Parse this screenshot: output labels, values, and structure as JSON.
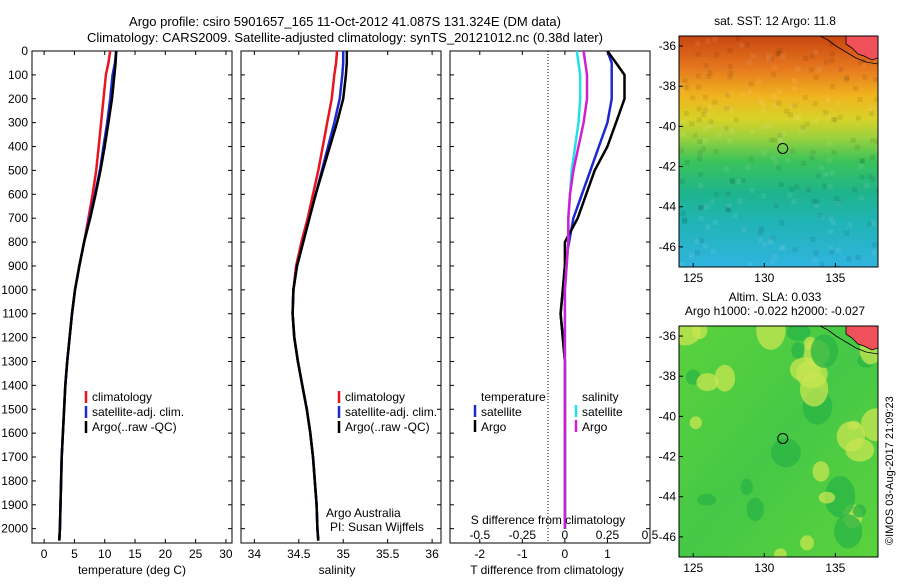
{
  "figure": {
    "title_line1": "Argo profile: csiro 5901657_165 11-Oct-2012 41.087S 131.324E (DM data)",
    "title_line2": "Climatology: CARS2009. Satellite-adjusted climatology: synTS_20121012.nc (0.38d later)",
    "credit": "Argo Australia",
    "pi": "PI: Susan Wijffels",
    "side_stamp": "©IMOS 03-Aug-2017 21:09:23"
  },
  "colors": {
    "climatology": "#e8141e",
    "satellite": "#1e28d2",
    "argo": "#000000",
    "salinity_satellite": "#21e1e6",
    "salinity_argo": "#d21ed2"
  },
  "chart_data": [
    {
      "type": "line",
      "name": "temperature_profile",
      "xlabel": "temperature (deg C)",
      "ylabel": "",
      "xlim": [
        -2,
        31
      ],
      "ylim": [
        2060,
        0
      ],
      "xticks": [
        0,
        5,
        10,
        15,
        20,
        25,
        30
      ],
      "yticks": [
        0,
        100,
        200,
        300,
        400,
        500,
        600,
        700,
        800,
        900,
        1000,
        1100,
        1200,
        1300,
        1400,
        1500,
        1600,
        1700,
        1800,
        1900,
        2000
      ],
      "legend": [
        "climatology",
        "satellite-adj. clim.",
        "Argo(..raw -QC)"
      ],
      "legend_position": "lower-center",
      "series": [
        {
          "name": "climatology",
          "color": "climatology",
          "x": [
            10.9,
            10.6,
            10.2,
            9.8,
            9.4,
            9.0,
            8.6,
            8.0,
            7.3,
            6.6,
            5.8,
            5.1,
            4.6,
            4.2,
            3.8,
            3.5,
            3.3,
            3.1,
            2.9,
            2.8,
            2.7,
            2.6,
            2.5
          ],
          "y": [
            0,
            50,
            100,
            200,
            300,
            400,
            500,
            600,
            700,
            800,
            900,
            1000,
            1100,
            1200,
            1300,
            1400,
            1500,
            1600,
            1700,
            1800,
            1900,
            2000,
            2050
          ]
        },
        {
          "name": "satellite-adj. clim.",
          "color": "satellite",
          "x": [
            11.9,
            11.7,
            11.3,
            10.9,
            10.4,
            9.8,
            9.2,
            8.4,
            7.5,
            6.6,
            5.8,
            5.1,
            4.6,
            4.2,
            3.8,
            3.5,
            3.3,
            3.1,
            2.9,
            2.8,
            2.7,
            2.6,
            2.5
          ],
          "y": [
            0,
            50,
            100,
            200,
            300,
            400,
            500,
            600,
            700,
            800,
            900,
            1000,
            1100,
            1200,
            1300,
            1400,
            1500,
            1600,
            1700,
            1800,
            1900,
            2000,
            2050
          ]
        },
        {
          "name": "Argo(..raw -QC)",
          "color": "argo",
          "x": [
            11.9,
            11.8,
            11.6,
            11.2,
            10.6,
            10.0,
            9.3,
            8.5,
            7.6,
            6.6,
            5.8,
            5.1,
            4.6,
            4.2,
            3.8,
            3.5,
            3.3,
            3.1,
            2.9,
            2.8,
            2.7,
            2.6,
            2.5
          ],
          "y": [
            0,
            50,
            100,
            200,
            300,
            400,
            500,
            600,
            700,
            800,
            900,
            1000,
            1100,
            1200,
            1300,
            1400,
            1500,
            1600,
            1700,
            1800,
            1900,
            2000,
            2050
          ]
        }
      ]
    },
    {
      "type": "line",
      "name": "salinity_profile",
      "xlabel": "salinity",
      "xlim": [
        33.85,
        36.1
      ],
      "ylim": [
        2060,
        0
      ],
      "xticks": [
        34,
        34.5,
        35,
        35.5,
        36
      ],
      "legend": [
        "climatology",
        "satellite-adj. clim.",
        "Argo(..raw -QC)"
      ],
      "legend_position": "lower-center",
      "series": [
        {
          "name": "climatology",
          "color": "climatology",
          "x": [
            34.93,
            34.92,
            34.9,
            34.87,
            34.82,
            34.77,
            34.72,
            34.66,
            34.6,
            34.53,
            34.47,
            34.44,
            34.43,
            34.45,
            34.49,
            34.54,
            34.59,
            34.63,
            34.66,
            34.68,
            34.7,
            34.71,
            34.72
          ],
          "y": [
            0,
            50,
            100,
            200,
            300,
            400,
            500,
            600,
            700,
            800,
            900,
            1000,
            1100,
            1200,
            1300,
            1400,
            1500,
            1600,
            1700,
            1800,
            1900,
            2000,
            2050
          ]
        },
        {
          "name": "satellite-adj. clim.",
          "color": "satellite",
          "x": [
            35.0,
            35.0,
            34.99,
            34.96,
            34.9,
            34.83,
            34.76,
            34.69,
            34.62,
            34.55,
            34.48,
            34.44,
            34.43,
            34.45,
            34.49,
            34.54,
            34.59,
            34.63,
            34.66,
            34.68,
            34.7,
            34.71,
            34.72
          ],
          "y": [
            0,
            50,
            100,
            200,
            300,
            400,
            500,
            600,
            700,
            800,
            900,
            1000,
            1100,
            1200,
            1300,
            1400,
            1500,
            1600,
            1700,
            1800,
            1900,
            2000,
            2050
          ]
        },
        {
          "name": "Argo(..raw -QC)",
          "color": "argo",
          "x": [
            35.04,
            35.04,
            35.03,
            35.0,
            34.93,
            34.85,
            34.77,
            34.69,
            34.62,
            34.55,
            34.48,
            34.44,
            34.43,
            34.45,
            34.49,
            34.54,
            34.59,
            34.63,
            34.66,
            34.68,
            34.7,
            34.71,
            34.72
          ],
          "y": [
            0,
            50,
            100,
            200,
            300,
            400,
            500,
            600,
            700,
            800,
            900,
            1000,
            1100,
            1200,
            1300,
            1400,
            1500,
            1600,
            1700,
            1800,
            1900,
            2000,
            2050
          ]
        }
      ]
    },
    {
      "type": "line",
      "name": "difference_profile",
      "xlabel": "T difference from climatology",
      "x2label": "S difference from climatology",
      "xlim": [
        -2.7,
        2.0
      ],
      "ylim": [
        2060,
        0
      ],
      "xticks": [
        -2,
        -1,
        0,
        1
      ],
      "x2lim": [
        -0.675,
        0.5
      ],
      "x2ticks": [
        -0.5,
        -0.25,
        0,
        0.25,
        0.5
      ],
      "x2ticklabels": [
        "-0.5",
        "-0.25",
        "0",
        "0.25",
        "0.5"
      ],
      "legend_temperature": {
        "title": "temperature",
        "items": [
          "satellite",
          "Argo"
        ]
      },
      "legend_salinity": {
        "title": "salinity",
        "items": [
          "satellite",
          "Argo"
        ]
      },
      "legend_position": "lower-center",
      "series": [
        {
          "name": "satellite",
          "group": "temperature",
          "color": "satellite",
          "x": [
            1.0,
            1.1,
            1.1,
            1.1,
            1.0,
            0.8,
            0.6,
            0.4,
            0.2,
            0.1,
            0.0,
            -0.05,
            -0.1,
            -0.05,
            0.0,
            0.0,
            0.0,
            0.0,
            0.0,
            0.0,
            0.0
          ],
          "y": [
            0,
            50,
            100,
            200,
            300,
            400,
            500,
            600,
            700,
            800,
            900,
            1000,
            1100,
            1200,
            1300,
            1400,
            1500,
            1600,
            1700,
            1800,
            2000
          ]
        },
        {
          "name": "Argo",
          "group": "temperature",
          "color": "argo",
          "x": [
            1.0,
            1.2,
            1.4,
            1.4,
            1.2,
            1.0,
            0.7,
            0.5,
            0.3,
            0.0,
            0.0,
            -0.05,
            -0.1,
            -0.05,
            0.0,
            0.0,
            0.0,
            0.0,
            0.0,
            0.0,
            0.0
          ],
          "y": [
            0,
            50,
            100,
            200,
            300,
            400,
            500,
            600,
            700,
            800,
            900,
            1000,
            1100,
            1200,
            1300,
            1400,
            1500,
            1600,
            1700,
            1800,
            2000
          ]
        },
        {
          "name": "satellite",
          "group": "salinity",
          "color": "salinity_satellite",
          "x": [
            0.07,
            0.08,
            0.09,
            0.09,
            0.08,
            0.06,
            0.04,
            0.03,
            0.02,
            0.02,
            0.01,
            0.0,
            0.0,
            0.0,
            0.0,
            0.0,
            0.0,
            0.0,
            0.0,
            0.0,
            0.0
          ],
          "y": [
            0,
            50,
            100,
            200,
            300,
            400,
            500,
            600,
            700,
            800,
            900,
            1000,
            1100,
            1200,
            1300,
            1400,
            1500,
            1600,
            1700,
            1800,
            2000
          ]
        },
        {
          "name": "Argo",
          "group": "salinity",
          "color": "salinity_argo",
          "x": [
            0.11,
            0.12,
            0.13,
            0.13,
            0.11,
            0.08,
            0.05,
            0.03,
            0.02,
            0.02,
            0.01,
            0.0,
            0.0,
            0.0,
            0.0,
            0.0,
            0.0,
            0.0,
            0.0,
            0.0,
            0.0
          ],
          "y": [
            0,
            50,
            100,
            200,
            300,
            400,
            500,
            600,
            700,
            800,
            900,
            1000,
            1100,
            1200,
            1300,
            1400,
            1500,
            1600,
            1700,
            1800,
            2000
          ]
        }
      ]
    },
    {
      "type": "heatmap",
      "name": "sst_map",
      "title": "sat. SST: 12 Argo: 11.8",
      "xlim": [
        124,
        138
      ],
      "ylim": [
        -47,
        -35.5
      ],
      "xticks": [
        125,
        130,
        135
      ],
      "yticks": [
        -36,
        -38,
        -40,
        -42,
        -44,
        -46
      ],
      "marker": {
        "lon": 131.3,
        "lat": -41.1
      }
    },
    {
      "type": "heatmap",
      "name": "sla_map",
      "title": "Altim. SLA: 0.033",
      "subtitle": "Argo h1000: -0.022 h2000: -0.027",
      "xlim": [
        124,
        138
      ],
      "ylim": [
        -47,
        -35.5
      ],
      "xticks": [
        125,
        130,
        135
      ],
      "yticks": [
        -36,
        -38,
        -40,
        -42,
        -44,
        -46
      ],
      "marker": {
        "lon": 131.3,
        "lat": -41.1
      }
    }
  ]
}
